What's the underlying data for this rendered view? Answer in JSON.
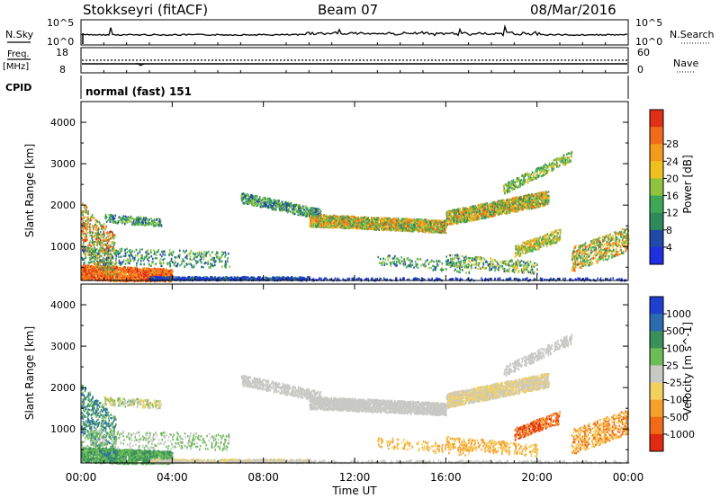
{
  "header": {
    "station": "Stokkseyri (fitACF)",
    "beam": "Beam 07",
    "date": "08/Mar/2016"
  },
  "nsky_panel": {
    "label": "N.Sky",
    "right_label": "N.Search",
    "tick_top": "10^5",
    "tick_bottom": "10^0",
    "right_tick_top": "10^5",
    "right_tick_bottom": "10^0"
  },
  "freq_panel": {
    "label_top": "Freq.",
    "label_unit": "[MHz]",
    "tick_top": "18",
    "tick_bottom": "8",
    "right_label": "Nave",
    "right_tick_top": "60",
    "right_tick_bottom": "0"
  },
  "cpid_panel": {
    "label": "CPID",
    "text": "normal (fast) 151"
  },
  "chart_data": [
    {
      "type": "heatmap",
      "name": "power",
      "ylabel": "Slant Range [km]",
      "ylim": [
        180,
        4500
      ],
      "yticks": [
        1000,
        2000,
        3000,
        4000
      ],
      "colorbar_label": "Power [dB]",
      "colorbar_ticks": [
        "4",
        "8",
        "12",
        "16",
        "20",
        "24",
        "28"
      ],
      "colors": [
        "#1f2fe0",
        "#1f4aa8",
        "#2e8a5a",
        "#3fa858",
        "#8fc23e",
        "#f0c020",
        "#f49a1c",
        "#f06a1c",
        "#e03018"
      ]
    },
    {
      "type": "heatmap",
      "name": "velocity",
      "ylabel": "Slant Range [km]",
      "xlabel": "Time UT",
      "ylim": [
        180,
        4500
      ],
      "yticks": [
        1000,
        2000,
        3000,
        4000
      ],
      "xticks": [
        "00:00",
        "04:00",
        "08:00",
        "12:00",
        "16:00",
        "20:00",
        "00:00"
      ],
      "colorbar_label": "Velocity [m s^-1]",
      "colorbar_ticks": [
        "1000",
        "500",
        "100",
        "25",
        "-25",
        "-100",
        "-500",
        "-1000"
      ],
      "colors": [
        "#1f3fd0",
        "#2c6bb0",
        "#3a8f5a",
        "#6cbc58",
        "#c8c8c4",
        "#f3d060",
        "#f4a02a",
        "#f06a18",
        "#e02a12"
      ]
    }
  ]
}
